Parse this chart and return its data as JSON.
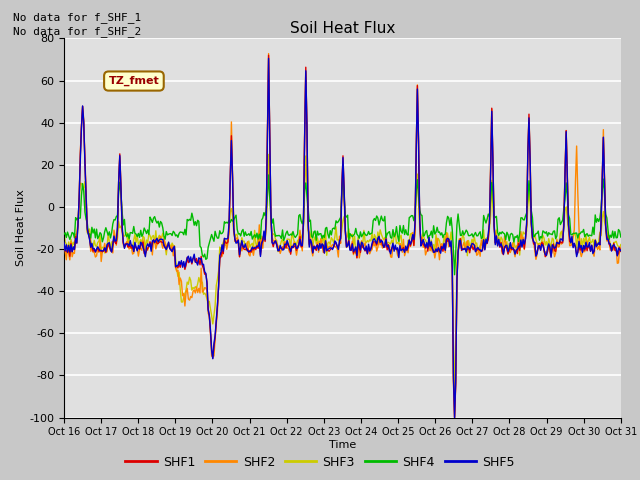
{
  "title": "Soil Heat Flux",
  "ylabel": "Soil Heat Flux",
  "xlabel": "Time",
  "ylim": [
    -100,
    80
  ],
  "fig_facecolor": "#c8c8c8",
  "plot_bg_color": "#e0e0e0",
  "annotations": [
    "No data for f_SHF_1",
    "No data for f_SHF_2"
  ],
  "legend_box_label": "TZ_fmet",
  "series_colors": {
    "SHF1": "#dd0000",
    "SHF2": "#ff8800",
    "SHF3": "#cccc00",
    "SHF4": "#00bb00",
    "SHF5": "#0000cc"
  },
  "ytick_values": [
    -100,
    -80,
    -60,
    -40,
    -20,
    0,
    20,
    40,
    60,
    80
  ],
  "n_points": 480,
  "figsize": [
    6.4,
    4.8
  ],
  "dpi": 100
}
